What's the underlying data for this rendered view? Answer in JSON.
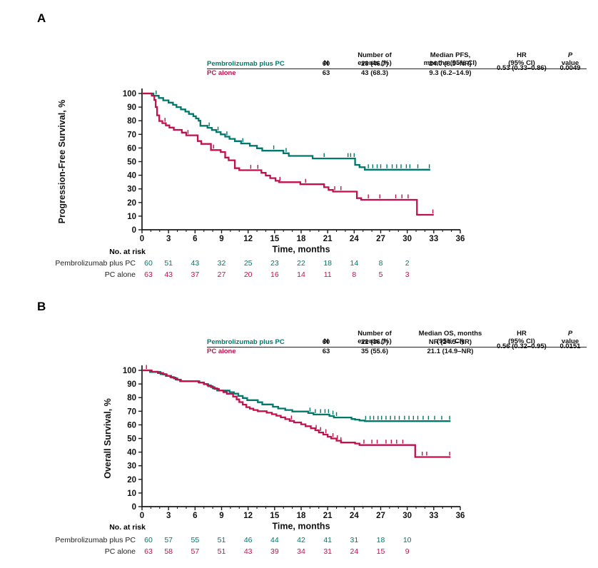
{
  "colors": {
    "pembrolizumab_plus_pc": "#00786B",
    "pc_alone": "#C0114A",
    "axis": "#1a1a1a"
  },
  "panels": [
    {
      "label": "A",
      "stats": {
        "col_n": "N",
        "col_events_l1": "Number of",
        "col_events_l2": "events (%)",
        "col_median_l1": "Median PFS,",
        "col_median_l2": "months (95% CI)",
        "col_hr_l1": "HR",
        "col_hr_l2": "(95% CI)",
        "col_p_l1": "P",
        "col_p_l2": "value",
        "rows": [
          {
            "group": "Pembrolizumab plus PC",
            "n": "60",
            "events": "28 (46.7)",
            "median": "24.0 (8.5–NR)"
          },
          {
            "group": "PC alone",
            "n": "63",
            "events": "43 (68.3)",
            "median": "9.3 (6.2–14.9)"
          }
        ],
        "hr": "0.53 (0.33–0.86)",
        "p": "0.0049"
      },
      "risk": {
        "title": "No. at risk",
        "times": [
          0,
          3,
          6,
          9,
          12,
          15,
          18,
          21,
          24,
          27,
          30
        ],
        "rows": [
          {
            "label": "Pembrolizumab plus PC",
            "counts": [
              60,
              51,
              43,
              32,
              25,
              23,
              22,
              18,
              14,
              8,
              2
            ]
          },
          {
            "label": "PC alone",
            "counts": [
              63,
              43,
              37,
              27,
              20,
              16,
              14,
              11,
              8,
              5,
              3
            ]
          }
        ]
      }
    },
    {
      "label": "B",
      "stats": {
        "col_n": "N",
        "col_events_l1": "Number of",
        "col_events_l2": "events (%)",
        "col_median_l1": "Median OS, months",
        "col_median_l2": "(95% CI)",
        "col_hr_l1": "HR",
        "col_hr_l2": "(95% CI)",
        "col_p_l1": "P",
        "col_p_l2": "value",
        "rows": [
          {
            "group": "Pembrolizumab plus PC",
            "n": "60",
            "events": "22 (36.7)",
            "median": "NR (24.5–NR)"
          },
          {
            "group": "PC alone",
            "n": "63",
            "events": "35 (55.6)",
            "median": "21.1 (14.9–NR)"
          }
        ],
        "hr": "0.56 (0.32–0.95)",
        "p": "0.0151"
      },
      "risk": {
        "title": "No. at risk",
        "times": [
          0,
          3,
          6,
          9,
          12,
          15,
          18,
          21,
          24,
          27,
          30
        ],
        "rows": [
          {
            "label": "Pembrolizumab plus PC",
            "counts": [
              60,
              57,
              55,
              51,
              46,
              44,
              42,
              41,
              31,
              18,
              10
            ]
          },
          {
            "label": "PC alone",
            "counts": [
              63,
              58,
              57,
              51,
              43,
              39,
              34,
              31,
              24,
              15,
              9
            ]
          }
        ]
      }
    }
  ],
  "chart_data": [
    {
      "type": "line",
      "subtype": "kaplan-meier-step",
      "title": "Progression-Free Survival",
      "xlabel": "Time, months",
      "ylabel": "Progression-Free Survival, %",
      "xlim": [
        0,
        36
      ],
      "ylim": [
        0,
        100
      ],
      "xticks": [
        0,
        3,
        6,
        9,
        12,
        15,
        18,
        21,
        24,
        27,
        30,
        33,
        36
      ],
      "yticks": [
        0,
        10,
        20,
        30,
        40,
        50,
        60,
        70,
        80,
        90,
        100
      ],
      "grid": false,
      "legend_position": "table-top-right",
      "series": [
        {
          "name": "Pembrolizumab plus PC",
          "color": "#00786B",
          "points": [
            [
              0,
              100
            ],
            [
              1.3,
              98.3
            ],
            [
              1.9,
              96.7
            ],
            [
              2.4,
              95
            ],
            [
              3.0,
              93.3
            ],
            [
              3.5,
              91.7
            ],
            [
              3.9,
              90
            ],
            [
              4.4,
              88.3
            ],
            [
              4.9,
              86.7
            ],
            [
              5.3,
              85
            ],
            [
              5.8,
              83.3
            ],
            [
              6.1,
              81.7
            ],
            [
              6.4,
              80
            ],
            [
              6.6,
              76.3
            ],
            [
              7.4,
              74.8
            ],
            [
              7.9,
              73.2
            ],
            [
              8.4,
              71.7
            ],
            [
              8.9,
              70
            ],
            [
              9.4,
              68.3
            ],
            [
              9.9,
              66.7
            ],
            [
              10.5,
              65
            ],
            [
              11.2,
              63.3
            ],
            [
              12.2,
              61.6
            ],
            [
              13.0,
              59.8
            ],
            [
              13.6,
              58
            ],
            [
              16.0,
              56.1
            ],
            [
              16.6,
              54.2
            ],
            [
              19.3,
              52.3
            ],
            [
              24.1,
              47.6
            ],
            [
              24.6,
              45.9
            ],
            [
              25.2,
              44.1
            ],
            [
              32.6,
              44.1
            ]
          ],
          "censors": [
            1.6,
            7.6,
            8.6,
            9.6,
            11.4,
            14.9,
            16.3,
            20.6,
            23.3,
            23.6,
            24.0,
            25.6,
            26.1,
            26.6,
            27.0,
            27.7,
            28.3,
            28.8,
            29.3,
            29.9,
            30.3,
            31.2,
            32.5
          ]
        },
        {
          "name": "PC alone",
          "color": "#C0114A",
          "points": [
            [
              0,
              100
            ],
            [
              1.1,
              98.4
            ],
            [
              1.4,
              95.2
            ],
            [
              1.55,
              90
            ],
            [
              1.7,
              84
            ],
            [
              1.95,
              79.8
            ],
            [
              2.3,
              78.2
            ],
            [
              2.7,
              76.6
            ],
            [
              3.1,
              75
            ],
            [
              3.6,
              73.3
            ],
            [
              4.5,
              71.3
            ],
            [
              5.0,
              69.3
            ],
            [
              6.3,
              65.1
            ],
            [
              6.7,
              63
            ],
            [
              7.8,
              58.5
            ],
            [
              8.9,
              57
            ],
            [
              9.4,
              53
            ],
            [
              9.8,
              51
            ],
            [
              10.5,
              45.2
            ],
            [
              11.0,
              43.7
            ],
            [
              13.5,
              41.8
            ],
            [
              14.0,
              39.8
            ],
            [
              14.5,
              37.9
            ],
            [
              15.1,
              35.9
            ],
            [
              15.5,
              34.9
            ],
            [
              17.9,
              33.4
            ],
            [
              20.6,
              31.2
            ],
            [
              21.1,
              29.2
            ],
            [
              21.6,
              28
            ],
            [
              24.3,
              23.2
            ],
            [
              24.8,
              22
            ],
            [
              31.1,
              11
            ],
            [
              33.0,
              11
            ]
          ],
          "censors": [
            2.6,
            5.2,
            8.1,
            12.3,
            13.1,
            15.6,
            18.5,
            21.8,
            22.5,
            25.6,
            26.9,
            28.7,
            29.4,
            30.1,
            32.9
          ]
        }
      ]
    },
    {
      "type": "line",
      "subtype": "kaplan-meier-step",
      "title": "Overall Survival",
      "xlabel": "Time, months",
      "ylabel": "Overall Survival, %",
      "xlim": [
        0,
        36
      ],
      "ylim": [
        0,
        100
      ],
      "xticks": [
        0,
        3,
        6,
        9,
        12,
        15,
        18,
        21,
        24,
        27,
        30,
        33,
        36
      ],
      "yticks": [
        0,
        10,
        20,
        30,
        40,
        50,
        60,
        70,
        80,
        90,
        100
      ],
      "grid": false,
      "legend_position": "table-top-right",
      "series": [
        {
          "name": "Pembrolizumab plus PC",
          "color": "#00786B",
          "points": [
            [
              0,
              100
            ],
            [
              0.9,
              98.8
            ],
            [
              2.1,
              97.2
            ],
            [
              2.7,
              95.9
            ],
            [
              3.3,
              94.7
            ],
            [
              3.8,
              93.2
            ],
            [
              4.3,
              92
            ],
            [
              6.5,
              91
            ],
            [
              7.0,
              89.8
            ],
            [
              7.5,
              88.3
            ],
            [
              8.0,
              86.8
            ],
            [
              8.5,
              85.2
            ],
            [
              9.9,
              84
            ],
            [
              10.4,
              82.9
            ],
            [
              10.9,
              81.2
            ],
            [
              11.4,
              79.7
            ],
            [
              11.9,
              78.1
            ],
            [
              13.1,
              76.6
            ],
            [
              13.6,
              75
            ],
            [
              14.8,
              73.3
            ],
            [
              15.4,
              72
            ],
            [
              16.2,
              70.9
            ],
            [
              17.0,
              69.8
            ],
            [
              18.8,
              68.7
            ],
            [
              19.4,
              67.6
            ],
            [
              21.2,
              66.5
            ],
            [
              21.7,
              65.4
            ],
            [
              23.7,
              64.3
            ],
            [
              24.1,
              63.8
            ],
            [
              24.6,
              63.2
            ],
            [
              25.2,
              62.7
            ],
            [
              34.9,
              62.7
            ]
          ],
          "censors": [
            19.0,
            19.6,
            20.2,
            20.7,
            21.1,
            21.6,
            22.0,
            25.3,
            25.8,
            26.2,
            26.7,
            27.1,
            27.6,
            28.1,
            28.6,
            29.1,
            29.7,
            30.2,
            30.7,
            31.2,
            31.8,
            32.4,
            33.1,
            33.9,
            34.8
          ]
        },
        {
          "name": "PC alone",
          "color": "#C0114A",
          "points": [
            [
              0,
              100
            ],
            [
              1.1,
              99
            ],
            [
              1.8,
              98
            ],
            [
              2.4,
              97
            ],
            [
              2.8,
              96
            ],
            [
              3.2,
              95.1
            ],
            [
              3.6,
              94.1
            ],
            [
              4.0,
              93.1
            ],
            [
              4.4,
              92.1
            ],
            [
              6.4,
              91.1
            ],
            [
              7.0,
              90
            ],
            [
              7.4,
              88.9
            ],
            [
              7.8,
              87.7
            ],
            [
              8.2,
              86.4
            ],
            [
              8.7,
              85.2
            ],
            [
              9.2,
              84
            ],
            [
              9.6,
              82.8
            ],
            [
              10.3,
              80.8
            ],
            [
              10.7,
              78.7
            ],
            [
              11.0,
              76.7
            ],
            [
              11.4,
              74.8
            ],
            [
              11.8,
              73
            ],
            [
              12.2,
              71.9
            ],
            [
              12.6,
              70.9
            ],
            [
              13.1,
              70
            ],
            [
              14.1,
              68.9
            ],
            [
              14.7,
              67.8
            ],
            [
              15.2,
              66.7
            ],
            [
              15.7,
              65.5
            ],
            [
              16.2,
              64.2
            ],
            [
              16.7,
              62.9
            ],
            [
              17.2,
              61.8
            ],
            [
              18.0,
              60.4
            ],
            [
              18.5,
              59
            ],
            [
              19.1,
              57.5
            ],
            [
              19.6,
              56
            ],
            [
              20.0,
              54.4
            ],
            [
              20.5,
              52.9
            ],
            [
              21.0,
              51.3
            ],
            [
              21.4,
              50
            ],
            [
              22.0,
              48.4
            ],
            [
              22.5,
              47
            ],
            [
              24.1,
              46.3
            ],
            [
              24.6,
              45.2
            ],
            [
              30.9,
              36.4
            ],
            [
              34.9,
              36.4
            ]
          ],
          "censors": [
            0.5,
            16.9,
            19.7,
            20.2,
            20.8,
            21.6,
            22.1,
            22.5,
            25.1,
            26.0,
            26.6,
            27.6,
            28.2,
            28.8,
            29.5,
            31.7,
            32.2,
            34.8
          ]
        }
      ]
    }
  ]
}
